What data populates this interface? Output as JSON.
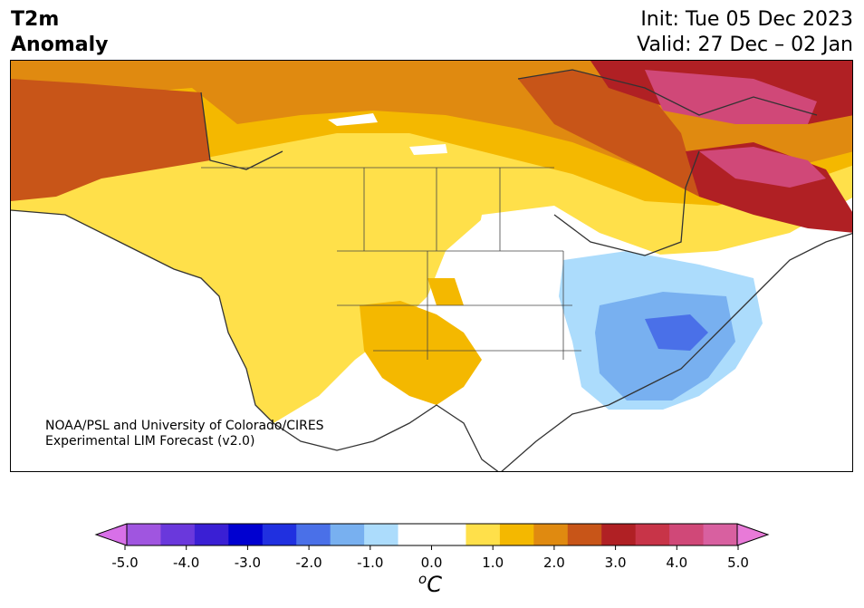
{
  "header": {
    "title_line1": "T2m",
    "title_line2": "Anomaly",
    "init_text": "Init: Tue 05 Dec 2023",
    "valid_text": "Valid: 27 Dec – 02 Jan"
  },
  "credit": {
    "line1": "NOAA/PSL and University of Colorado/CIRES",
    "line2": "Experimental LIM Forecast (v2.0)"
  },
  "colorbar": {
    "unit_base": "C",
    "unit_sup": "o",
    "ticks": [
      "-5.0",
      "-4.0",
      "-3.0",
      "-2.0",
      "-1.0",
      "0.0",
      "1.0",
      "2.0",
      "3.0",
      "4.0",
      "5.0"
    ],
    "under_color": "#d870e8",
    "over_color": "#e87ad8",
    "colors": [
      "#d870e8",
      "#a055e0",
      "#6a38dc",
      "#3a1fd4",
      "#0000d0",
      "#2030e0",
      "#4a70e8",
      "#78b0f0",
      "#acdcfc",
      "#ffffff",
      "#ffffff",
      "#ffe04a",
      "#f4b800",
      "#e08a10",
      "#c85518",
      "#b02024",
      "#c83448",
      "#d04878",
      "#d860a0",
      "#e87ad8"
    ]
  }
}
